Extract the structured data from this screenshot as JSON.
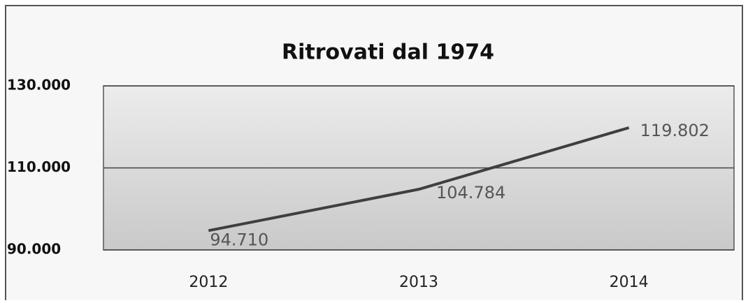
{
  "chart_data": {
    "type": "line",
    "title": "Ritrovati dal 1974",
    "categories": [
      "2012",
      "2013",
      "2014"
    ],
    "values": [
      94710,
      104784,
      119802
    ],
    "value_labels": [
      "94.710",
      "104.784",
      "119.802"
    ],
    "color": "#3f3f3f",
    "ylim": [
      90000,
      130000
    ],
    "yticks": [
      {
        "value": 90000,
        "label": "90.000"
      },
      {
        "value": 110000,
        "label": "110.000"
      },
      {
        "value": 130000,
        "label": "130.000"
      }
    ],
    "grid": true
  }
}
